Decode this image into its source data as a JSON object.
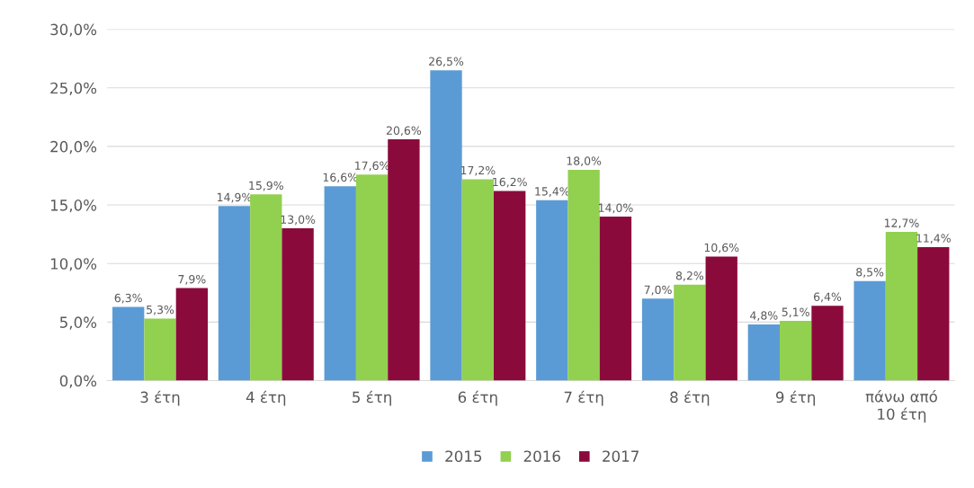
{
  "chart_data": {
    "type": "bar",
    "categories": [
      "3 έτη",
      "4 έτη",
      "5 έτη",
      "6 έτη",
      "7 έτη",
      "8 έτη",
      "9 έτη",
      "πάνω από\n10 έτη"
    ],
    "series": [
      {
        "name": "2015",
        "color": "#5b9bd5",
        "values": [
          6.3,
          14.9,
          16.6,
          26.5,
          15.4,
          7.0,
          4.8,
          8.5
        ],
        "value_labels": [
          "6,3%",
          "14,9%",
          "16,6%",
          "26,5%",
          "15,4%",
          "7,0%",
          "4,8%",
          "8,5%"
        ]
      },
      {
        "name": "2016",
        "color": "#92d050",
        "values": [
          5.3,
          15.9,
          17.6,
          17.2,
          18.0,
          8.2,
          5.1,
          12.7
        ],
        "value_labels": [
          "5,3%",
          "15,9%",
          "17,6%",
          "17,2%",
          "18,0%",
          "8,2%",
          "5,1%",
          "12,7%"
        ]
      },
      {
        "name": "2017",
        "color": "#8b0a3c",
        "values": [
          7.9,
          13.0,
          20.6,
          16.2,
          14.0,
          10.6,
          6.4,
          11.4
        ],
        "value_labels": [
          "7,9%",
          "13,0%",
          "20,6%",
          "16,2%",
          "14,0%",
          "10,6%",
          "6,4%",
          "11,4%"
        ]
      }
    ],
    "ylim": [
      0,
      30
    ],
    "yticks": [
      {
        "value": 0,
        "label": "0,0%"
      },
      {
        "value": 5,
        "label": "5,0%"
      },
      {
        "value": 10,
        "label": "10,0%"
      },
      {
        "value": 15,
        "label": "15,0%"
      },
      {
        "value": 20,
        "label": "20,0%"
      },
      {
        "value": 25,
        "label": "25,0%"
      },
      {
        "value": 30,
        "label": "30,0%"
      }
    ],
    "grid": "y",
    "legend": "bottom"
  }
}
